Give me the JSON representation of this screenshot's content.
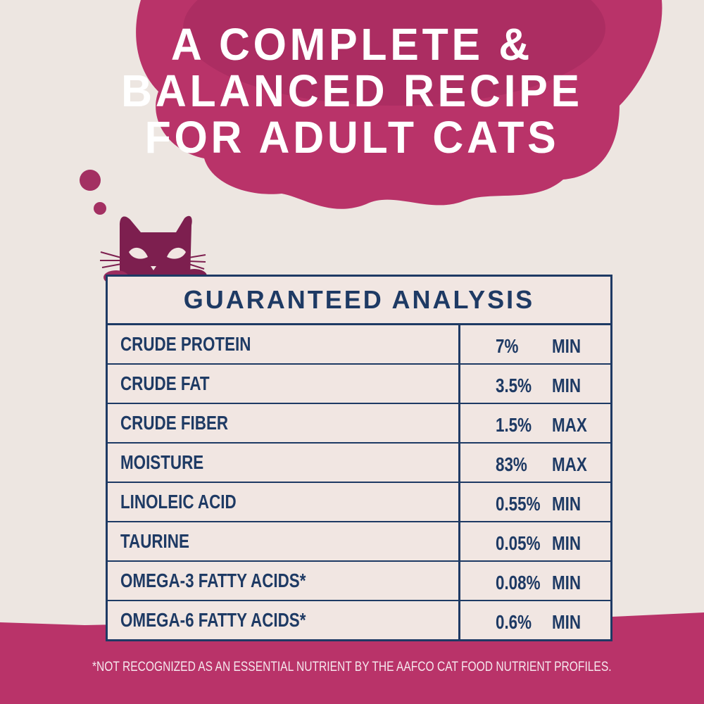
{
  "title": [
    "A COMPLETE &",
    "BALANCED RECIPE",
    "FOR ADULT CATS"
  ],
  "table": {
    "heading": "GUARANTEED ANALYSIS",
    "rows": [
      {
        "name": "CRUDE PROTEIN",
        "value": "7%",
        "unit": "MIN"
      },
      {
        "name": "CRUDE FAT",
        "value": "3.5%",
        "unit": "MIN"
      },
      {
        "name": "CRUDE FIBER",
        "value": "1.5%",
        "unit": "MAX"
      },
      {
        "name": "MOISTURE",
        "value": "83%",
        "unit": "MAX"
      },
      {
        "name": "LINOLEIC ACID",
        "value": "0.55%",
        "unit": "MIN"
      },
      {
        "name": "TAURINE",
        "value": "0.05%",
        "unit": "MIN"
      },
      {
        "name": "OMEGA-3 FATTY ACIDS*",
        "value": "0.08%",
        "unit": "MIN"
      },
      {
        "name": "OMEGA-6 FATTY ACIDS*",
        "value": "0.6%",
        "unit": "MIN"
      }
    ]
  },
  "footnote": "*NOT RECOGNIZED AS AN ESSENTIAL NUTRIENT BY THE AAFCO CAT FOOD NUTRIENT PROFILES.",
  "colors": {
    "background": "#ede6e1",
    "pink": "#b93369",
    "cat": "#7d1f4f",
    "navy": "#1e3a64"
  },
  "icons": [
    "thought-cloud",
    "cat-peeking"
  ]
}
